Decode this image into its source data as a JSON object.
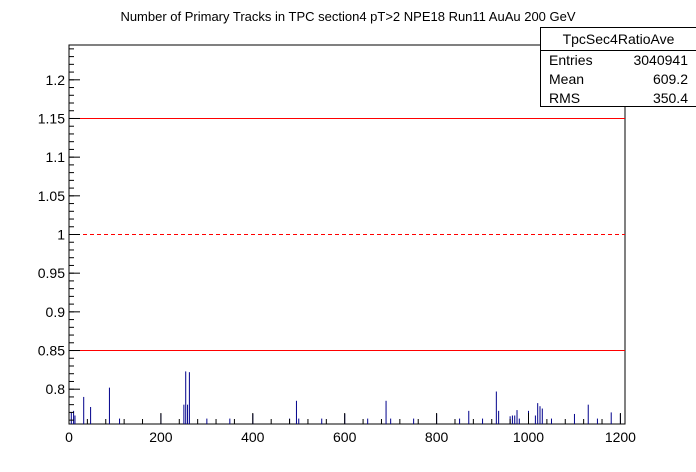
{
  "chart_data": {
    "type": "histogram",
    "title": "Number of Primary Tracks in TPC section4 pT>2 NPE18 Run11 AuAu 200 GeV",
    "xlabel": "",
    "ylabel": "",
    "xlim": [
      0,
      1210
    ],
    "ylim": [
      0.755,
      1.245
    ],
    "x_ticks": [
      0,
      200,
      400,
      600,
      800,
      1000,
      1200
    ],
    "x_tick_labels": [
      "0",
      "200",
      "400",
      "600",
      "800",
      "1000",
      "1200"
    ],
    "y_ticks": [
      0.8,
      0.85,
      0.9,
      0.95,
      1.0,
      1.05,
      1.1,
      1.15,
      1.2
    ],
    "y_tick_labels": [
      "0.8",
      "0.85",
      "0.9",
      "0.95",
      "1",
      "1.05",
      "1.1",
      "1.15",
      "1.2"
    ],
    "reference_lines": [
      {
        "y": 1.15,
        "style": "solid",
        "color": "#ff0000"
      },
      {
        "y": 1.0,
        "style": "dashed",
        "color": "#ff0000"
      },
      {
        "y": 0.85,
        "style": "solid",
        "color": "#ff0000"
      }
    ],
    "series": [
      {
        "color": "#00008b",
        "x": [
          5,
          10,
          13,
          32,
          47,
          88,
          110,
          200,
          250,
          254,
          258,
          262,
          300,
          350,
          400,
          480,
          495,
          500,
          550,
          600,
          650,
          690,
          700,
          750,
          800,
          850,
          870,
          900,
          930,
          935,
          960,
          965,
          970,
          975,
          980,
          1000,
          1015,
          1020,
          1025,
          1030,
          1050,
          1100,
          1130,
          1150,
          1180,
          1200
        ],
        "values": [
          0.77,
          0.772,
          0.766,
          0.79,
          0.777,
          0.802,
          0.762,
          0.768,
          0.78,
          0.823,
          0.78,
          0.822,
          0.762,
          0.762,
          0.768,
          0.762,
          0.785,
          0.762,
          0.762,
          0.768,
          0.762,
          0.785,
          0.762,
          0.762,
          0.768,
          0.762,
          0.772,
          0.762,
          0.797,
          0.772,
          0.765,
          0.766,
          0.766,
          0.773,
          0.762,
          0.772,
          0.766,
          0.782,
          0.778,
          0.775,
          0.762,
          0.768,
          0.78,
          0.762,
          0.77,
          0.768
        ]
      }
    ],
    "grid": false,
    "legend": "top-right"
  },
  "stats": {
    "name": "TpcSec4RatioAve",
    "rows": [
      {
        "label": "Entries",
        "value": "3040941"
      },
      {
        "label": "Mean",
        "value": "609.2"
      },
      {
        "label": "RMS",
        "value": "350.4"
      }
    ]
  }
}
